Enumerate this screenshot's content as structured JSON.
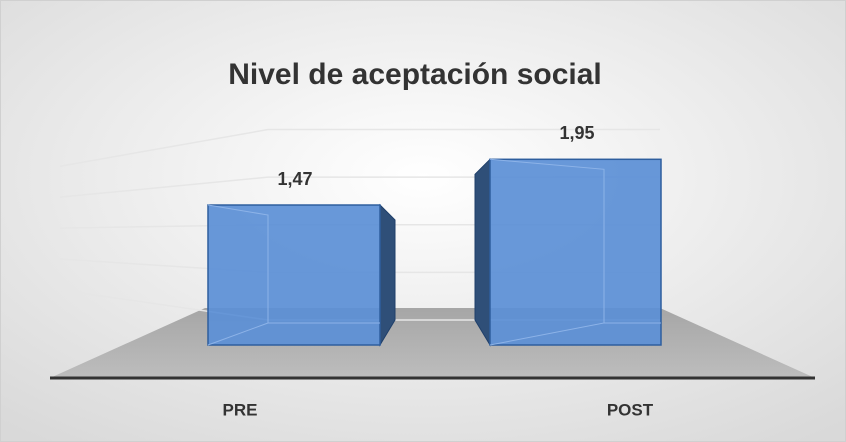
{
  "chart_data": {
    "type": "bar3d",
    "title": "Nivel de aceptación social",
    "categories": [
      "PRE",
      "POST"
    ],
    "values": [
      1.47,
      1.95
    ],
    "value_labels": [
      "1,47",
      "1,95"
    ],
    "color": "#5b8fd6",
    "ylim": [
      0,
      2.2
    ],
    "yticks": [
      0,
      0.5,
      1,
      1.5,
      2
    ],
    "grid": true
  }
}
